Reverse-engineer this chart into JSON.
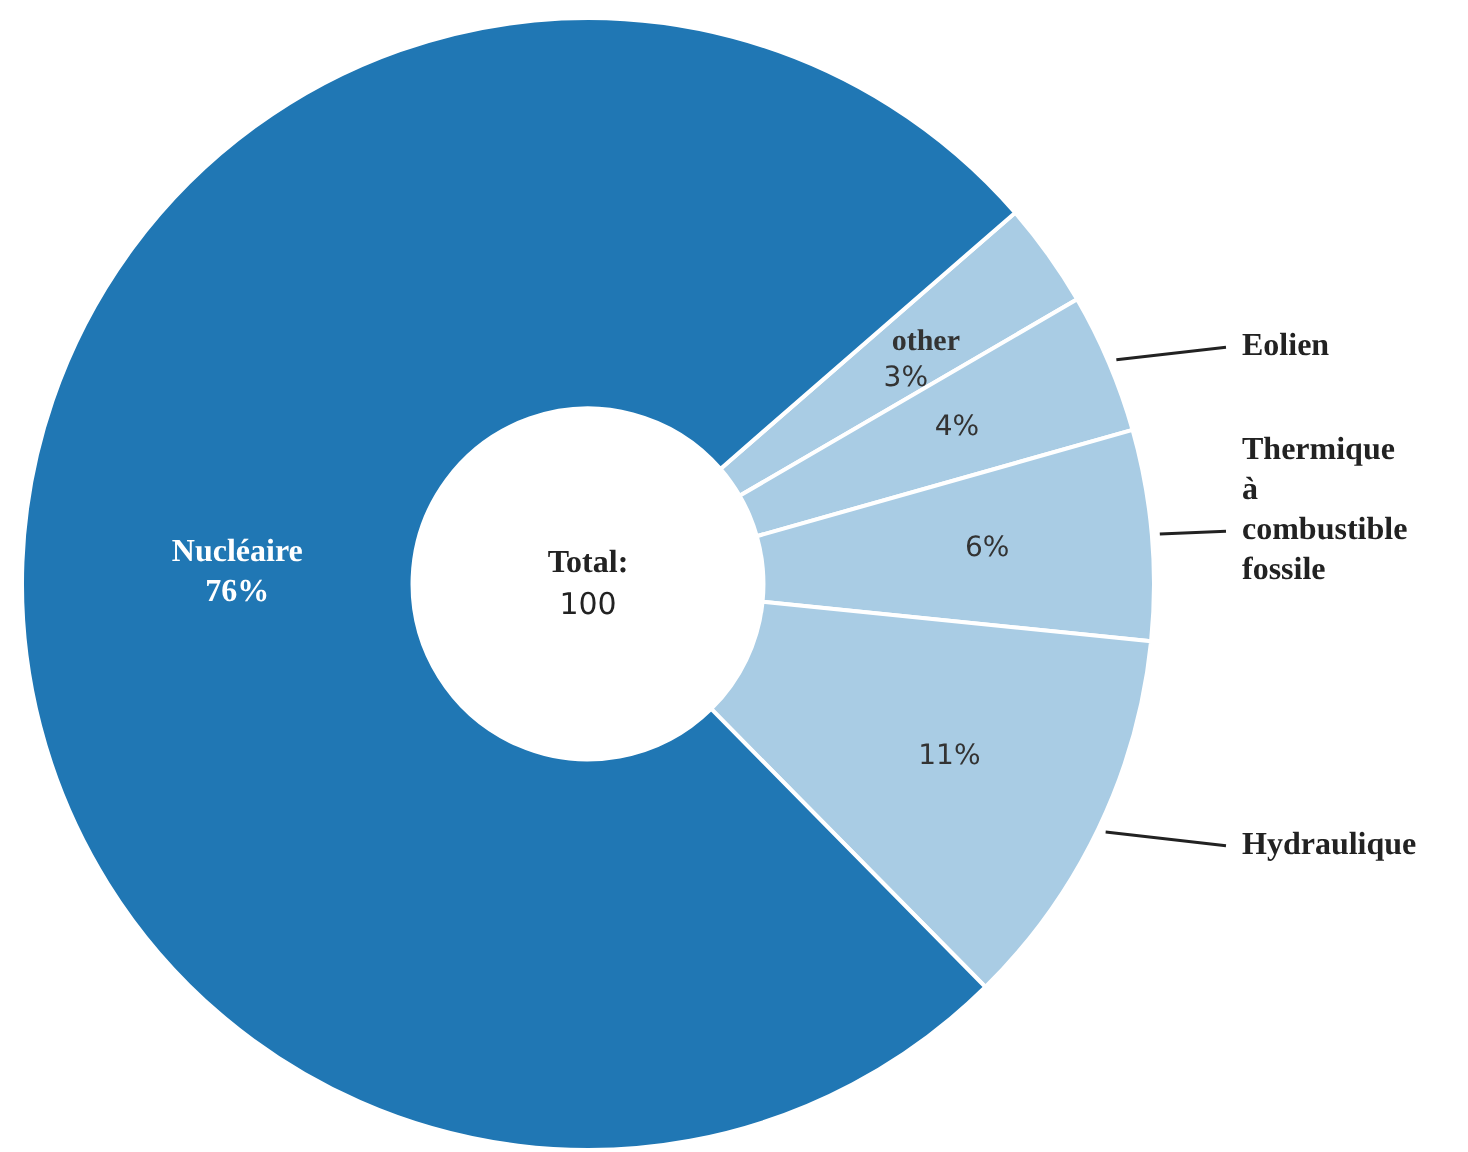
{
  "chart_data": {
    "type": "donut",
    "categories": [
      "other",
      "Eolien",
      "Thermique à combustible fossile",
      "Hydraulique",
      "Nucléaire"
    ],
    "values": [
      3,
      4,
      6,
      11,
      76
    ],
    "colors": [
      "#a9cce4",
      "#a9cce4",
      "#a9cce4",
      "#a9cce4",
      "#2077b4"
    ],
    "value_labels": [
      "3%",
      "4%",
      "6%",
      "11%",
      "76%"
    ],
    "annotations": [
      "Total:",
      "100"
    ],
    "legend": false
  }
}
